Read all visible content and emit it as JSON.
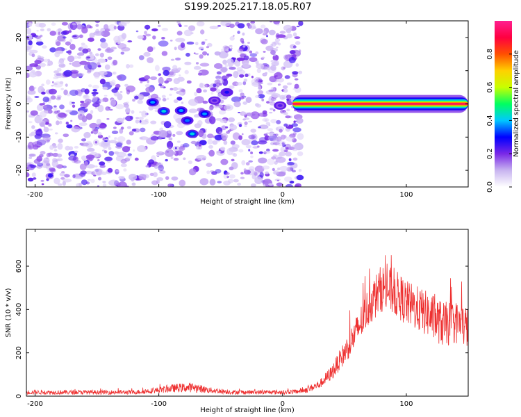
{
  "title": "S199.2025.217.18.05.R07",
  "chart_data": [
    {
      "type": "heatmap",
      "title": "S199.2025.217.18.05.R07",
      "xlabel": "Height of straight line (km)",
      "ylabel": "Frequency (Hz)",
      "xlim": [
        -207,
        150
      ],
      "ylim": [
        -25,
        25
      ],
      "xticks": [
        -200,
        -100,
        0,
        100
      ],
      "yticks": [
        -20,
        -10,
        0,
        10,
        20
      ],
      "noise_region_x": [
        -207,
        15
      ],
      "signal_band": {
        "x_start": 8,
        "x_end": 150,
        "frequency": 0,
        "half_width_hz": 1.5,
        "peak_amplitude": 0.95
      },
      "features": [
        {
          "x": -105,
          "y": 0.5,
          "amplitude": 0.3
        },
        {
          "x": -96,
          "y": -2.2,
          "amplitude": 0.35
        },
        {
          "x": -82,
          "y": -2,
          "amplitude": 0.3
        },
        {
          "x": -77,
          "y": -5,
          "amplitude": 0.28
        },
        {
          "x": -73,
          "y": -9,
          "amplitude": 0.35
        },
        {
          "x": -63,
          "y": -3,
          "amplitude": 0.3
        },
        {
          "x": -55,
          "y": 1,
          "amplitude": 0.15
        },
        {
          "x": -45,
          "y": 3.5,
          "amplitude": 0.2
        },
        {
          "x": -2,
          "y": -0.5,
          "amplitude": 0.15
        }
      ],
      "colorbar": {
        "label": "Normalized spectral amplitude",
        "range": [
          0.0,
          1.0
        ],
        "ticks": [
          0.0,
          0.2,
          0.4,
          0.6,
          0.8
        ],
        "tick_labels": [
          "0.0",
          "0.2",
          "0.4",
          "0.6",
          "0.8"
        ],
        "colors": [
          "#ffffff",
          "#c8b4f0",
          "#7a28e6",
          "#0000ff",
          "#00c8ff",
          "#00ff60",
          "#c8ff00",
          "#ffd000",
          "#ff5000",
          "#ff0040",
          "#ff2090"
        ]
      }
    },
    {
      "type": "line",
      "xlabel": "Height of straight line (km)",
      "ylabel": "SNR (10 * v/v)",
      "xlim": [
        -207,
        150
      ],
      "ylim": [
        0,
        770
      ],
      "xticks": [
        -200,
        -100,
        0,
        100
      ],
      "yticks": [
        0,
        200,
        400,
        600
      ],
      "line_color": "#ee3030",
      "envelope": {
        "x": [
          -207,
          -120,
          -100,
          -85,
          -72,
          -60,
          -40,
          -20,
          0,
          10,
          20,
          30,
          40,
          50,
          60,
          70,
          80,
          90,
          100,
          110,
          120,
          130,
          140,
          150
        ],
        "mean": [
          18,
          18,
          28,
          38,
          40,
          28,
          18,
          18,
          18,
          20,
          30,
          55,
          110,
          200,
          300,
          420,
          500,
          480,
          430,
          400,
          370,
          330,
          340,
          320
        ],
        "noise_amplitude": [
          10,
          10,
          14,
          20,
          22,
          14,
          10,
          10,
          10,
          10,
          15,
          20,
          35,
          55,
          75,
          95,
          110,
          110,
          105,
          105,
          105,
          105,
          100,
          100
        ]
      }
    }
  ]
}
